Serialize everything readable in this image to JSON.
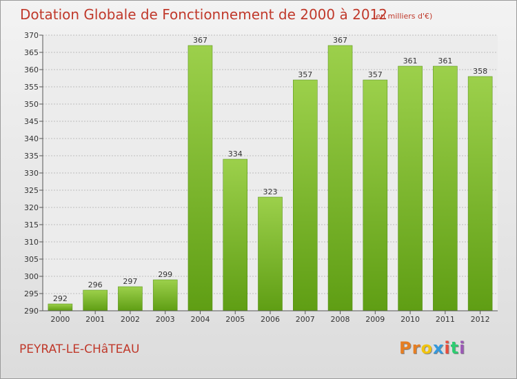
{
  "header": {
    "title": "Dotation Globale de Fonctionnement de 2000 à 2012",
    "unit": "(en milliers d'€)"
  },
  "footer": {
    "commune": "PEYRAT-LE-CHâTEAU",
    "logo": "Proxiti",
    "logo_colors": [
      "#e67e22",
      "#e67e22",
      "#f1c40f",
      "#3498db",
      "#e74c3c",
      "#2ecc71",
      "#9b59b6"
    ]
  },
  "colors": {
    "bar_light": "#9cd04b",
    "bar_dark": "#5f9e14",
    "grid": "#bdbdbd",
    "title": "#c0392b"
  },
  "chart_data": {
    "type": "bar",
    "categories": [
      "2000",
      "2001",
      "2002",
      "2003",
      "2004",
      "2005",
      "2006",
      "2007",
      "2008",
      "2009",
      "2010",
      "2011",
      "2012"
    ],
    "values": [
      292,
      296,
      297,
      299,
      367,
      334,
      323,
      357,
      367,
      357,
      361,
      361,
      358
    ],
    "data_labels": [
      "292",
      "296",
      "297",
      "299",
      "367",
      "334",
      "323",
      "357",
      "367",
      "357",
      "361",
      "361",
      "358"
    ],
    "show_data_labels": [
      true,
      true,
      true,
      true,
      true,
      true,
      true,
      true,
      true,
      true,
      true,
      true,
      true
    ],
    "ylim": [
      290,
      370
    ],
    "yticks": [
      290,
      295,
      300,
      305,
      310,
      315,
      320,
      325,
      330,
      335,
      340,
      345,
      350,
      355,
      360,
      365,
      370
    ],
    "grid": true,
    "xlabel": "",
    "ylabel": ""
  }
}
